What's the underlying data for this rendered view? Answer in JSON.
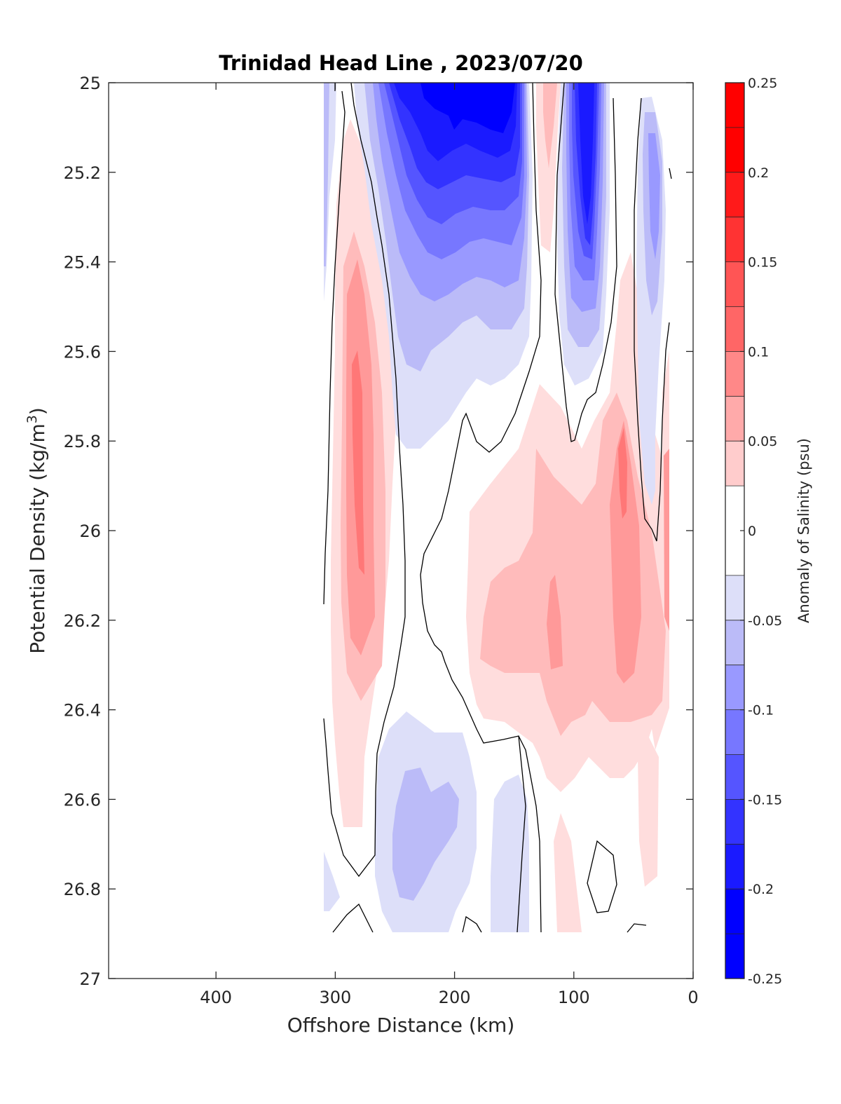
{
  "chart_data": {
    "type": "filled-contour",
    "title": "Trinidad Head Line , 2023/07/20",
    "xlabel": "Offshore Distance (km)",
    "ylabel": "Potential Density (kg/m",
    "ylabel_sup": "3",
    "ylabel_close": ")",
    "colorbar_label": "Anomaly of Salinity (psu)",
    "xlim": [
      490,
      0
    ],
    "ylim": [
      25,
      27
    ],
    "y_reversed": true,
    "x_reversed": true,
    "xticks": [
      400,
      300,
      200,
      100,
      0
    ],
    "xtick_labels": [
      "400",
      "300",
      "200",
      "100",
      "0"
    ],
    "yticks": [
      25,
      25.2,
      25.4,
      25.6,
      25.8,
      26,
      26.2,
      26.4,
      26.6,
      26.8,
      27
    ],
    "ytick_labels": [
      "25",
      "25.2",
      "25.4",
      "25.6",
      "25.8",
      "26",
      "26.2",
      "26.4",
      "26.6",
      "26.8",
      "27"
    ],
    "clim": [
      -0.25,
      0.25
    ],
    "colorbar_ticks": [
      0.25,
      0.2,
      0.15,
      0.1,
      0.05,
      0,
      -0.05,
      -0.1,
      -0.15,
      -0.2,
      -0.25
    ],
    "colorbar_tick_labels": [
      "0.25",
      "0.2",
      "0.15",
      "0.1",
      "0.05",
      "0",
      "-0.05",
      "-0.1",
      "-0.15",
      "-0.2",
      "-0.25"
    ],
    "level_colors": [
      "#0000ff",
      "#1a1aff",
      "#3333ff",
      "#5555ff",
      "#7777ff",
      "#9999ff",
      "#bbbbf8",
      "#dddff9",
      "#ffffff",
      "#ffdddd",
      "#ffbbbb",
      "#ff9999",
      "#ff7777",
      "#ff5555",
      "#ff3333",
      "#ff1a1a",
      "#ff0000"
    ],
    "colorbar_levels": [
      0.25,
      0.225,
      0.2,
      0.175,
      0.15,
      0.125,
      0.1,
      0.075,
      0.05,
      0.025,
      -0.025,
      -0.05,
      -0.075,
      -0.1,
      -0.125,
      -0.15,
      -0.175,
      -0.2,
      -0.225,
      -0.25
    ],
    "data_extent_km": [
      310,
      20
    ],
    "data_extent_density": [
      25,
      26.9
    ],
    "features": [
      {
        "name": "offshore-high",
        "min_anomaly": 0.1,
        "x_center": 280,
        "y_range": [
          25.4,
          26.3
        ]
      },
      {
        "name": "offshore-low",
        "min_anomaly": -0.25,
        "x_center": 180,
        "y_range": [
          25,
          25.6
        ]
      },
      {
        "name": "midshelf-low",
        "min_anomaly": -0.2,
        "x_center": 90,
        "y_range": [
          25,
          25.6
        ]
      },
      {
        "name": "nearshore-high",
        "min_anomaly": 0.1,
        "x_center": 60,
        "y_range": [
          25.8,
          26.3
        ]
      },
      {
        "name": "deep-low",
        "min_anomaly": -0.075,
        "x_center": 230,
        "y_range": [
          26.5,
          26.85
        ]
      }
    ]
  }
}
